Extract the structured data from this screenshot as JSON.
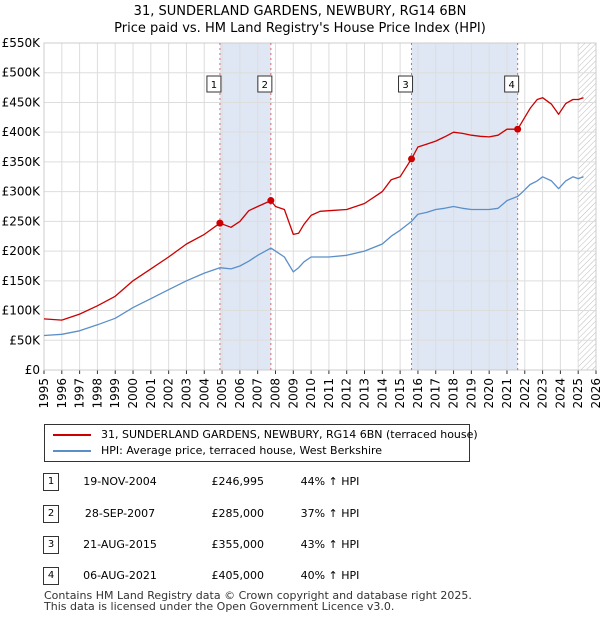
{
  "title_line1": "31, SUNDERLAND GARDENS, NEWBURY, RG14 6BN",
  "title_line2": "Price paid vs. HM Land Registry's House Price Index (HPI)",
  "chart_data": {
    "type": "line",
    "title": "31, SUNDERLAND GARDENS, NEWBURY, RG14 6BN - Price paid vs. HM Land Registry's House Price Index (HPI)",
    "xlabel": "",
    "ylabel": "",
    "xlim": [
      1995,
      2026
    ],
    "ylim": [
      0,
      550000
    ],
    "grid": true,
    "y_ticks": [
      0,
      50000,
      100000,
      150000,
      200000,
      250000,
      300000,
      350000,
      400000,
      450000,
      500000,
      550000
    ],
    "y_tick_labels": [
      "£0",
      "£50K",
      "£100K",
      "£150K",
      "£200K",
      "£250K",
      "£300K",
      "£350K",
      "£400K",
      "£450K",
      "£500K",
      "£550K"
    ],
    "x_ticks": [
      1995,
      1996,
      1997,
      1998,
      1999,
      2000,
      2001,
      2002,
      2003,
      2004,
      2005,
      2006,
      2007,
      2008,
      2009,
      2010,
      2011,
      2012,
      2013,
      2014,
      2015,
      2016,
      2017,
      2018,
      2019,
      2020,
      2021,
      2022,
      2023,
      2024,
      2025,
      2026
    ],
    "x_tick_labels": [
      "1995",
      "1996",
      "1997",
      "1998",
      "1999",
      "2000",
      "2001",
      "2002",
      "2003",
      "2004",
      "2005",
      "2006",
      "2007",
      "2008",
      "2009",
      "2010",
      "2011",
      "2012",
      "2013",
      "2014",
      "2015",
      "2016",
      "2017",
      "2018",
      "2019",
      "2020",
      "2021",
      "2022",
      "2023",
      "2024",
      "2025",
      "2026"
    ],
    "series": [
      {
        "name": "31, SUNDERLAND GARDENS, NEWBURY, RG14 6BN (terraced house)",
        "color": "#cc0000",
        "x": [
          1995.0,
          1996.0,
          1997.0,
          1998.0,
          1999.0,
          2000.0,
          2001.0,
          2002.0,
          2003.0,
          2004.0,
          2004.88,
          2005.5,
          2006.0,
          2006.5,
          2007.0,
          2007.74,
          2008.0,
          2008.5,
          2009.0,
          2009.3,
          2009.6,
          2010.0,
          2010.5,
          2011.0,
          2012.0,
          2013.0,
          2014.0,
          2014.5,
          2015.0,
          2015.64,
          2016.0,
          2016.5,
          2017.0,
          2017.5,
          2018.0,
          2018.5,
          2019.0,
          2019.5,
          2020.0,
          2020.5,
          2021.0,
          2021.6,
          2021.9,
          2022.3,
          2022.7,
          2023.0,
          2023.5,
          2023.9,
          2024.3,
          2024.7,
          2025.0,
          2025.3
        ],
        "y": [
          86000,
          84000,
          94000,
          108000,
          124000,
          150000,
          170000,
          190000,
          212000,
          228000,
          246995,
          240000,
          250000,
          268000,
          275000,
          285000,
          275000,
          270000,
          228000,
          230000,
          245000,
          260000,
          267000,
          268000,
          270000,
          280000,
          300000,
          320000,
          325000,
          355000,
          375000,
          380000,
          385000,
          392000,
          400000,
          398000,
          395000,
          393000,
          392000,
          395000,
          405000,
          405000,
          420000,
          440000,
          455000,
          458000,
          447000,
          430000,
          448000,
          455000,
          455000,
          458000
        ]
      },
      {
        "name": "HPI: Average price, terraced house, West Berkshire",
        "color": "#5b8fc9",
        "x": [
          1995.0,
          1996.0,
          1997.0,
          1998.0,
          1999.0,
          2000.0,
          2001.0,
          2002.0,
          2003.0,
          2004.0,
          2004.88,
          2005.5,
          2006.0,
          2006.5,
          2007.0,
          2007.74,
          2008.0,
          2008.5,
          2009.0,
          2009.3,
          2009.6,
          2010.0,
          2010.5,
          2011.0,
          2012.0,
          2013.0,
          2014.0,
          2014.5,
          2015.0,
          2015.64,
          2016.0,
          2016.5,
          2017.0,
          2017.5,
          2018.0,
          2018.5,
          2019.0,
          2019.5,
          2020.0,
          2020.5,
          2021.0,
          2021.6,
          2021.9,
          2022.3,
          2022.7,
          2023.0,
          2023.5,
          2023.9,
          2024.3,
          2024.7,
          2025.0,
          2025.3
        ],
        "y": [
          58000,
          60000,
          66000,
          76000,
          87000,
          105000,
          120000,
          135000,
          150000,
          163000,
          172000,
          170000,
          175000,
          183000,
          193000,
          205000,
          200000,
          190000,
          165000,
          172000,
          182000,
          190000,
          190000,
          190000,
          193000,
          200000,
          212000,
          225000,
          235000,
          250000,
          262000,
          265000,
          270000,
          272000,
          275000,
          272000,
          270000,
          270000,
          270000,
          272000,
          285000,
          292000,
          300000,
          312000,
          318000,
          325000,
          318000,
          305000,
          318000,
          325000,
          322000,
          325000
        ]
      }
    ],
    "annotations": [
      {
        "label": "1",
        "x": 2004.88,
        "y": 246995
      },
      {
        "label": "2",
        "x": 2007.74,
        "y": 285000
      },
      {
        "label": "3",
        "x": 2015.64,
        "y": 355000
      },
      {
        "label": "4",
        "x": 2021.6,
        "y": 405000
      }
    ],
    "shaded_ranges": [
      [
        2004.88,
        2007.74
      ],
      [
        2015.64,
        2021.6
      ]
    ],
    "hatched_range": [
      2025.0,
      2026.0
    ]
  },
  "legend": {
    "property_label": "31, SUNDERLAND GARDENS, NEWBURY, RG14 6BN (terraced house)",
    "hpi_label": "HPI: Average price, terraced house, West Berkshire",
    "property_color": "#cc0000",
    "hpi_color": "#5b8fc9"
  },
  "transactions": [
    {
      "num": "1",
      "date": "19-NOV-2004",
      "price": "£246,995",
      "hpi": "44% ↑ HPI"
    },
    {
      "num": "2",
      "date": "28-SEP-2007",
      "price": "£285,000",
      "hpi": "37% ↑ HPI"
    },
    {
      "num": "3",
      "date": "21-AUG-2015",
      "price": "£355,000",
      "hpi": "43% ↑ HPI"
    },
    {
      "num": "4",
      "date": "06-AUG-2021",
      "price": "£405,000",
      "hpi": "40% ↑ HPI"
    }
  ],
  "footer_line1": "Contains HM Land Registry data © Crown copyright and database right 2025.",
  "footer_line2": "This data is licensed under the Open Government Licence v3.0."
}
